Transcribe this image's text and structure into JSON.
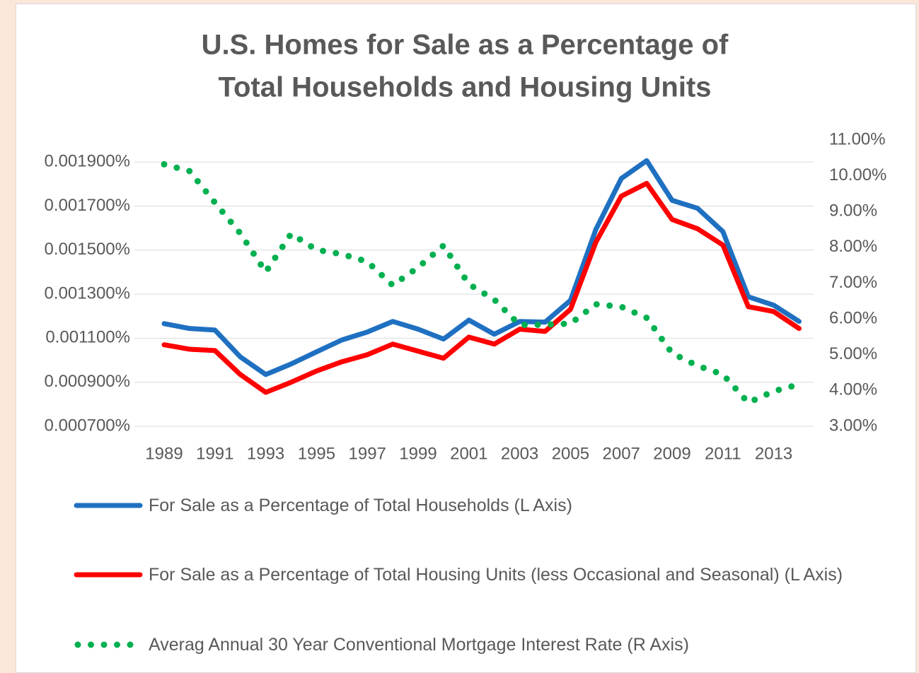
{
  "chart_data": {
    "type": "line",
    "title": [
      "U.S. Homes for Sale as a Percentage of",
      "Total Households and Housing Units"
    ],
    "categories": [
      "1989",
      null,
      "1991",
      null,
      "1993",
      null,
      "1995",
      null,
      "1997",
      null,
      "1999",
      null,
      "2001",
      null,
      "2003",
      null,
      "2005",
      null,
      "2007",
      null,
      "2009",
      null,
      "2011",
      null,
      "2013",
      null
    ],
    "series": [
      {
        "name": "For Sale as a Percentage of Total Households (L Axis)",
        "color": "#1f70c1",
        "style": "solid",
        "values": [
          0.001166,
          0.001144,
          0.001137,
          0.001015,
          0.000935,
          0.000983,
          0.001038,
          0.001092,
          0.001128,
          0.001176,
          0.001141,
          0.001096,
          0.001182,
          0.001118,
          0.001176,
          0.001173,
          0.001272,
          0.001594,
          0.001825,
          0.001906,
          0.001726,
          0.00169,
          0.001584,
          0.001288,
          0.00125,
          0.001176
        ]
      },
      {
        "name": "For Sale as a Percentage of Total Housing Units (less Occasional and Seasonal) (L Axis)",
        "color": "#ff0000",
        "style": "solid",
        "values": [
          0.00107,
          0.00105,
          0.001044,
          0.000935,
          0.000854,
          0.0009,
          0.000951,
          0.000993,
          0.001025,
          0.001073,
          0.001041,
          0.001009,
          0.001105,
          0.001073,
          0.001141,
          0.001131,
          0.001231,
          0.001536,
          0.001745,
          0.001803,
          0.001639,
          0.001597,
          0.001523,
          0.001243,
          0.001221,
          0.001144
        ]
      },
      {
        "name": "Averag Annual 30 Year Conventional Mortgage Interest Rate (R Axis)",
        "color": "#00b050",
        "style": "dotted",
        "axis": "y2",
        "values": [
          10.32,
          10.13,
          9.25,
          8.39,
          7.31,
          8.38,
          7.93,
          7.81,
          7.6,
          6.94,
          7.44,
          8.05,
          6.97,
          6.54,
          5.83,
          5.84,
          5.87,
          6.41,
          6.34,
          6.03,
          5.04,
          4.69,
          4.45,
          3.66,
          3.98,
          4.17
        ]
      }
    ],
    "ylim": [
      0.0007,
      0.002
    ],
    "yticks": [
      {
        "value": 0.0007,
        "label": "0.000700%"
      },
      {
        "value": 0.0009,
        "label": "0.000900%"
      },
      {
        "value": 0.0011,
        "label": "0.001100%"
      },
      {
        "value": 0.0013,
        "label": "0.001300%"
      },
      {
        "value": 0.0015,
        "label": "0.001500%"
      },
      {
        "value": 0.0017,
        "label": "0.001700%"
      },
      {
        "value": 0.0019,
        "label": "0.001900%"
      }
    ],
    "y2lim": [
      3,
      11
    ],
    "y2ticks": [
      {
        "value": 3,
        "label": "3.00%"
      },
      {
        "value": 4,
        "label": "4.00%"
      },
      {
        "value": 5,
        "label": "5.00%"
      },
      {
        "value": 6,
        "label": "6.00%"
      },
      {
        "value": 7,
        "label": "7.00%"
      },
      {
        "value": 8,
        "label": "8.00%"
      },
      {
        "value": 9,
        "label": "9.00%"
      },
      {
        "value": 10,
        "label": "10.00%"
      },
      {
        "value": 11,
        "label": "11.00%"
      }
    ],
    "grid": true,
    "legend": "bottom"
  }
}
